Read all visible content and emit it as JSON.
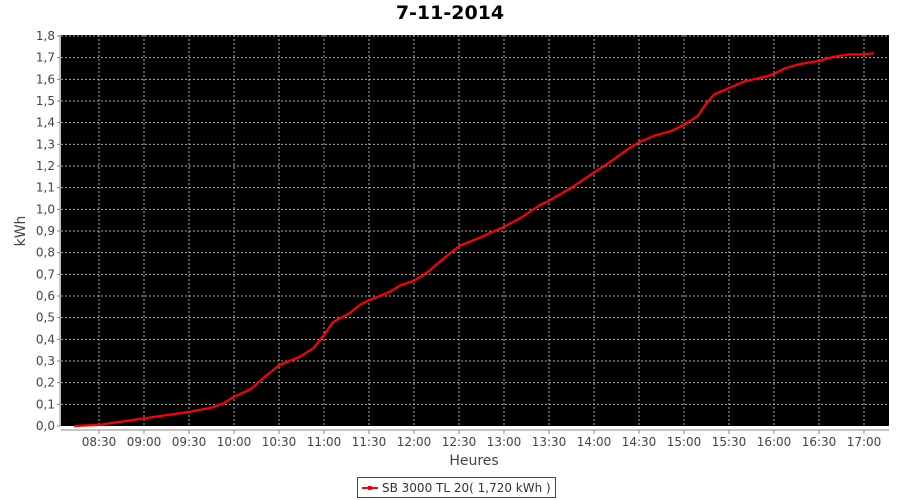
{
  "chart_data": {
    "type": "line",
    "title": "7-11-2014",
    "xlabel": "Heures",
    "ylabel": "kWh",
    "xlim": [
      "08:04",
      "17:17"
    ],
    "ylim": [
      0,
      1.8
    ],
    "x_ticks": [
      "08:30",
      "09:00",
      "09:30",
      "10:00",
      "10:30",
      "11:00",
      "11:30",
      "12:00",
      "12:30",
      "13:00",
      "13:30",
      "14:00",
      "14:30",
      "15:00",
      "15:30",
      "16:00",
      "16:30",
      "17:00"
    ],
    "y_ticks": [
      "0,0",
      "0,1",
      "0,2",
      "0,3",
      "0,4",
      "0,5",
      "0,6",
      "0,7",
      "0,8",
      "0,9",
      "1,0",
      "1,1",
      "1,2",
      "1,3",
      "1,4",
      "1,5",
      "1,6",
      "1,7",
      "1,8"
    ],
    "grid": true,
    "background": "#000000",
    "legend_position": "bottom",
    "series": [
      {
        "name": "SB 3000 TL 20( 1,720 kWh )",
        "color": "#ff0000",
        "x": [
          "08:14",
          "08:30",
          "09:00",
          "09:30",
          "09:45",
          "09:53",
          "10:00",
          "10:11",
          "10:21",
          "10:30",
          "10:44",
          "10:53",
          "11:00",
          "11:06",
          "11:17",
          "11:24",
          "11:30",
          "11:44",
          "11:51",
          "12:00",
          "12:09",
          "12:21",
          "12:30",
          "12:44",
          "13:00",
          "13:11",
          "13:24",
          "13:30",
          "13:45",
          "14:00",
          "14:11",
          "14:21",
          "14:30",
          "14:40",
          "14:51",
          "15:00",
          "15:09",
          "15:15",
          "15:20",
          "15:30",
          "15:40",
          "15:53",
          "16:00",
          "16:07",
          "16:17",
          "16:30",
          "16:40",
          "16:51",
          "17:00",
          "17:06"
        ],
        "values": [
          0.0,
          0.005,
          0.035,
          0.065,
          0.085,
          0.105,
          0.135,
          0.17,
          0.23,
          0.28,
          0.32,
          0.36,
          0.42,
          0.48,
          0.52,
          0.56,
          0.58,
          0.62,
          0.65,
          0.67,
          0.71,
          0.78,
          0.83,
          0.87,
          0.92,
          0.96,
          1.02,
          1.04,
          1.1,
          1.17,
          1.22,
          1.27,
          1.31,
          1.34,
          1.36,
          1.39,
          1.43,
          1.49,
          1.53,
          1.56,
          1.59,
          1.61,
          1.625,
          1.65,
          1.67,
          1.685,
          1.705,
          1.715,
          1.715,
          1.72
        ]
      }
    ]
  }
}
